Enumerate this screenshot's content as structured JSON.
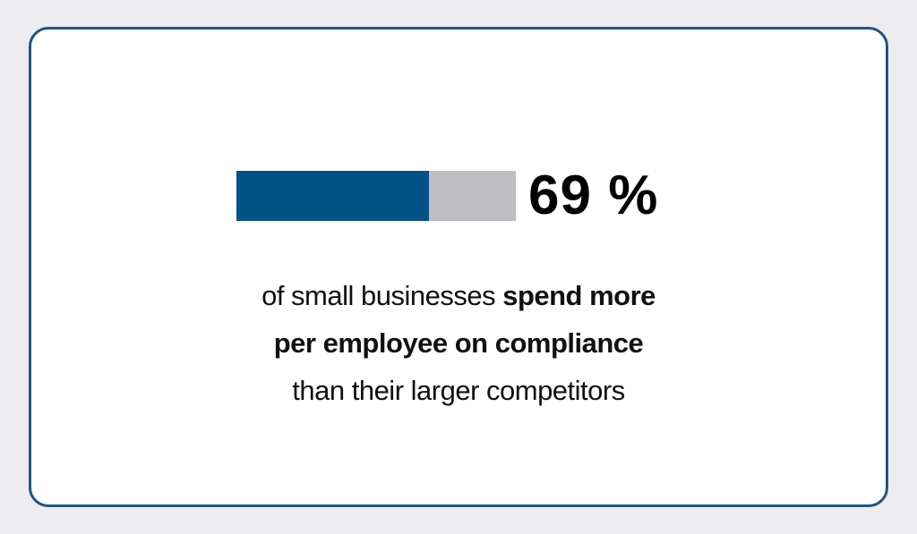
{
  "stat": {
    "percent_value": 69,
    "percent_label": "69 %",
    "bar_color": "#045388",
    "bar_track_color": "#bdbdc2"
  },
  "statement": {
    "part1": "of small businesses ",
    "part2_bold": "spend more",
    "part3_bold": "per employee on compliance",
    "part4": "than their larger competitors"
  },
  "border_color": "#1d5585"
}
